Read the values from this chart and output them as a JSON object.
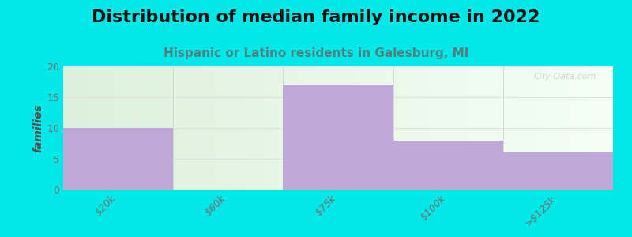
{
  "title": "Distribution of median family income in 2022",
  "subtitle": "Hispanic or Latino residents in Galesburg, MI",
  "categories": [
    "$20k",
    "$60k",
    "$75k",
    "$100k",
    ">$125k"
  ],
  "values": [
    10,
    0,
    17,
    8,
    6
  ],
  "bar_color": "#c0a8d8",
  "background_outer": "#00e8e8",
  "ylabel": "families",
  "ylim": [
    0,
    20
  ],
  "yticks": [
    0,
    5,
    10,
    15,
    20
  ],
  "title_fontsize": 16,
  "subtitle_fontsize": 11,
  "subtitle_color": "#508080",
  "watermark": "City-Data.com",
  "tick_label_color": "#707070",
  "tick_label_fontsize": 9,
  "ylabel_fontsize": 10,
  "ylabel_color": "#505050",
  "grid_color": "#e0e0e0",
  "bg_left_color": "#ddf0dd",
  "bg_right_color": "#f8fff8"
}
